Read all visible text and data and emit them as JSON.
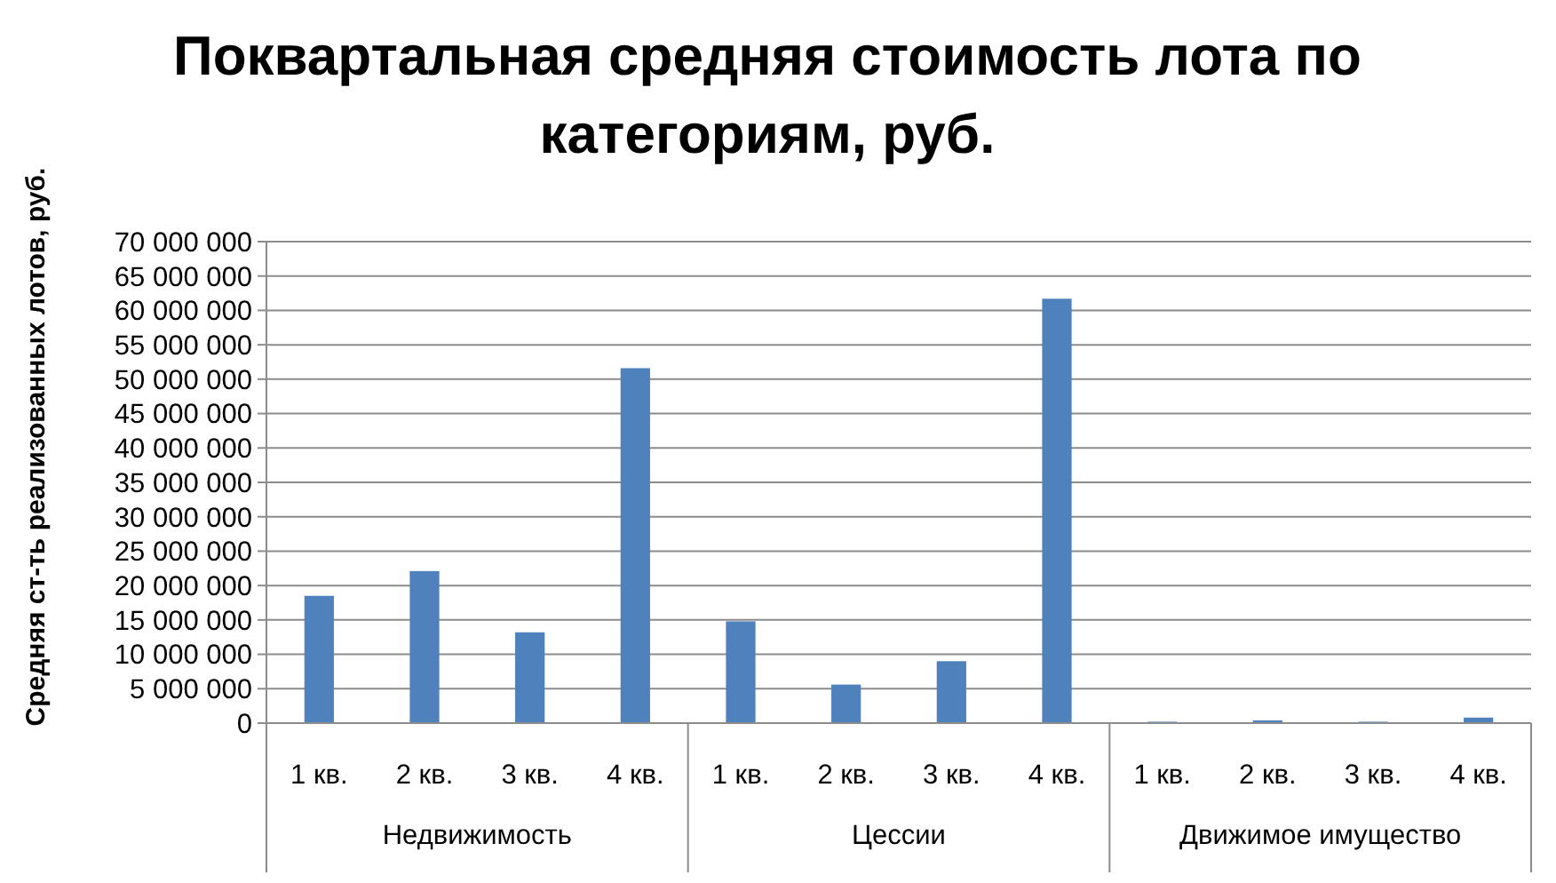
{
  "chart_data": {
    "type": "bar",
    "title": "Поквартальная средняя стоимость лота по категориям, руб.",
    "ylabel": "Средняя ст-ть реализованных лотов, руб.",
    "categories": [
      "1 кв.",
      "2 кв.",
      "3 кв.",
      "4 кв.",
      "1 кв.",
      "2 кв.",
      "3 кв.",
      "4 кв.",
      "1 кв.",
      "2 кв.",
      "3 кв.",
      "4 кв."
    ],
    "values": [
      18500000,
      22100000,
      13200000,
      51600000,
      14800000,
      5600000,
      9000000,
      61700000,
      200000,
      400000,
      200000,
      800000
    ],
    "color": "#4f81bd",
    "annotations": [
      "Недвижимость",
      "Цессии",
      "Движимое имущество"
    ],
    "ylim": [
      0,
      70000000
    ],
    "yticks": [
      {
        "value": 0,
        "label": "0"
      },
      {
        "value": 5000000,
        "label": "5 000 000"
      },
      {
        "value": 10000000,
        "label": "10 000 000"
      },
      {
        "value": 15000000,
        "label": "15 000 000"
      },
      {
        "value": 20000000,
        "label": "20 000 000"
      },
      {
        "value": 25000000,
        "label": "25 000 000"
      },
      {
        "value": 30000000,
        "label": "30 000 000"
      },
      {
        "value": 35000000,
        "label": "35 000 000"
      },
      {
        "value": 40000000,
        "label": "40 000 000"
      },
      {
        "value": 45000000,
        "label": "45 000 000"
      },
      {
        "value": 50000000,
        "label": "50 000 000"
      },
      {
        "value": 55000000,
        "label": "55 000 000"
      },
      {
        "value": 60000000,
        "label": "60 000 000"
      },
      {
        "value": 65000000,
        "label": "65 000 000"
      },
      {
        "value": 70000000,
        "label": "70 000 000"
      }
    ],
    "grid": "y"
  }
}
